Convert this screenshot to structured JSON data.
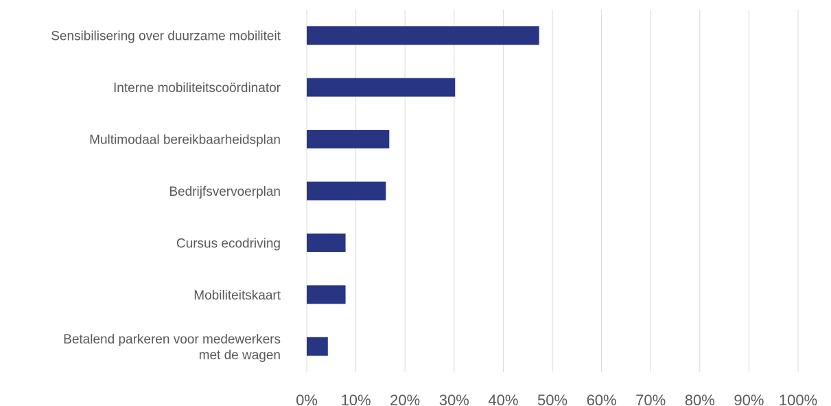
{
  "chart_data": {
    "type": "bar",
    "orientation": "horizontal",
    "categories": [
      [
        "Sensibilisering over duurzame mobiliteit"
      ],
      [
        "Interne mobiliteitscoördinator"
      ],
      [
        "Multimodaal bereikbaarheidsplan"
      ],
      [
        "Bedrijfsvervoerplan"
      ],
      [
        "Cursus ecodriving"
      ],
      [
        "Mobiliteitskaart"
      ],
      [
        "Betalend parkeren voor medewerkers",
        "met de wagen"
      ]
    ],
    "values": [
      47.3,
      30.2,
      16.8,
      16.1,
      7.9,
      7.9,
      4.3
    ],
    "xlim": [
      0,
      100
    ],
    "x_ticks": [
      0,
      10,
      20,
      30,
      40,
      50,
      60,
      70,
      80,
      90,
      100
    ],
    "x_tick_labels": [
      "0%",
      "10%",
      "20%",
      "30%",
      "40%",
      "50%",
      "60%",
      "70%",
      "80%",
      "90%",
      "100%"
    ],
    "title": "",
    "xlabel": "",
    "ylabel": "",
    "grid": "vertical",
    "legend": "none",
    "colors": {
      "bar": "#283583",
      "grid": "#d9d9d9",
      "text": "#595959"
    }
  }
}
